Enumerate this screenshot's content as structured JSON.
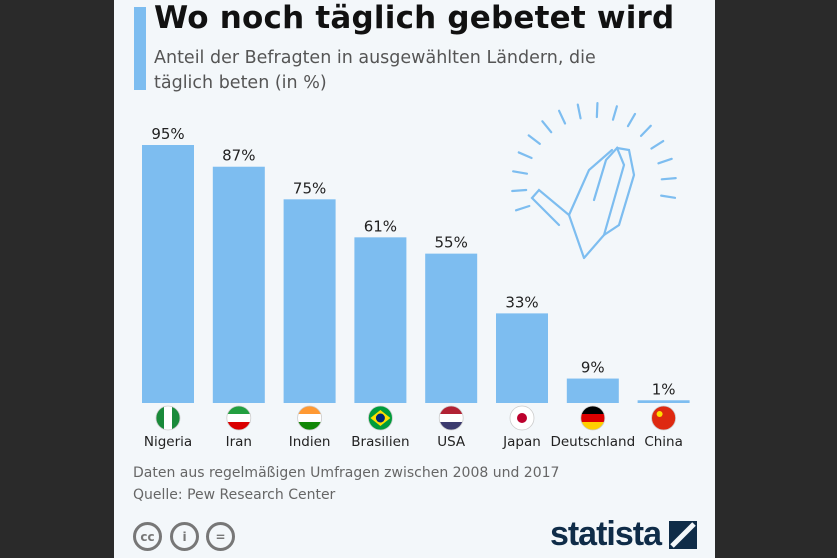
{
  "chart_data": {
    "type": "bar",
    "title": "Wo noch täglich gebetet wird",
    "subtitle": "Anteil der Befragten in ausgewählten Ländern, die täglich beten (in %)",
    "categories": [
      "Nigeria",
      "Iran",
      "Indien",
      "Brasilien",
      "USA",
      "Japan",
      "Deutschland",
      "China"
    ],
    "values": [
      95,
      87,
      75,
      61,
      55,
      33,
      9,
      1
    ],
    "value_labels": [
      "95%",
      "87%",
      "75%",
      "61%",
      "55%",
      "33%",
      "9%",
      "1%"
    ],
    "ylim": [
      0,
      100
    ],
    "bar_color": "#7dbdf0",
    "grid": false
  },
  "footer": {
    "note": "Daten aus regelmäßigen Umfragen zwischen 2008 und 2017",
    "source": "Quelle: Pew Research Center"
  },
  "license": {
    "cc": "cc",
    "by": "i",
    "nd": "="
  },
  "brand": "statista"
}
